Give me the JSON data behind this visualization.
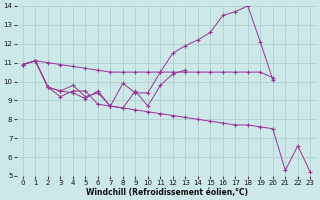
{
  "background_color": "#cce8e8",
  "grid_color": "#aacccc",
  "line_color": "#993399",
  "xlim": [
    -0.5,
    23.5
  ],
  "ylim": [
    5,
    14
  ],
  "xticks": [
    0,
    1,
    2,
    3,
    4,
    5,
    6,
    7,
    8,
    9,
    10,
    11,
    12,
    13,
    14,
    15,
    16,
    17,
    18,
    19,
    20,
    21,
    22,
    23
  ],
  "yticks": [
    5,
    6,
    7,
    8,
    9,
    10,
    11,
    12,
    13,
    14
  ],
  "xlabel": "Windchill (Refroidissement éolien,°C)",
  "lines": [
    {
      "x": [
        0,
        1,
        2,
        3,
        4,
        5,
        6,
        7,
        8,
        9,
        10,
        11,
        12,
        13,
        14,
        15,
        16,
        17,
        18,
        19,
        20
      ],
      "y": [
        10.9,
        11.1,
        11.0,
        10.9,
        10.8,
        10.7,
        10.6,
        10.5,
        10.5,
        10.5,
        10.5,
        10.5,
        10.5,
        10.5,
        10.5,
        10.5,
        10.5,
        10.5,
        10.5,
        10.5,
        10.2
      ]
    },
    {
      "x": [
        0,
        1,
        2,
        3,
        4,
        5,
        6,
        7,
        8,
        9,
        10,
        11,
        12,
        13,
        14,
        15,
        16,
        17,
        18,
        19,
        20
      ],
      "y": [
        10.9,
        11.1,
        9.7,
        9.5,
        9.4,
        9.1,
        9.5,
        8.7,
        9.9,
        9.4,
        9.4,
        10.5,
        11.5,
        11.9,
        12.2,
        12.6,
        13.5,
        13.7,
        14.0,
        12.1,
        10.1
      ]
    },
    {
      "x": [
        0,
        1,
        2,
        3,
        4,
        5,
        6,
        7,
        8,
        9,
        10,
        11,
        12,
        13
      ],
      "y": [
        10.9,
        11.1,
        9.7,
        9.5,
        9.8,
        9.2,
        9.4,
        8.7,
        8.6,
        9.5,
        8.7,
        9.8,
        10.4,
        10.6
      ]
    },
    {
      "x": [
        0,
        1,
        2,
        3,
        4,
        5,
        6,
        7,
        8,
        9,
        10,
        11,
        12,
        13,
        14,
        15,
        16,
        17,
        18,
        19,
        20,
        21,
        22,
        23
      ],
      "y": [
        10.9,
        11.1,
        9.7,
        9.2,
        9.5,
        9.5,
        8.8,
        8.7,
        8.6,
        8.5,
        8.4,
        8.3,
        8.2,
        8.1,
        8.0,
        7.9,
        7.8,
        7.7,
        7.7,
        7.6,
        7.5,
        5.3,
        6.6,
        5.2
      ]
    }
  ]
}
